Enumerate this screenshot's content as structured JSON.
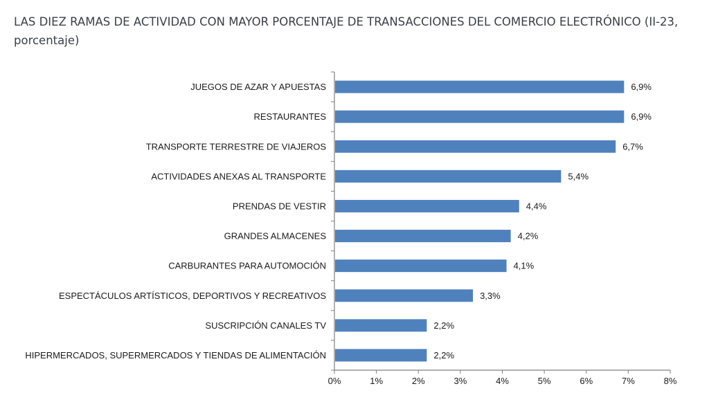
{
  "chart_data": {
    "type": "bar",
    "orientation": "horizontal",
    "title": "LAS DIEZ RAMAS DE ACTIVIDAD CON MAYOR PORCENTAJE DE TRANSACCIONES DEL COMERCIO ELECTRÓNICO (II-23, porcentaje)",
    "categories": [
      "JUEGOS DE AZAR Y APUESTAS",
      "RESTAURANTES",
      "TRANSPORTE TERRESTRE DE VIAJEROS",
      "ACTIVIDADES ANEXAS AL TRANSPORTE",
      "PRENDAS DE VESTIR",
      "GRANDES ALMACENES",
      "CARBURANTES PARA AUTOMOCIÓN",
      "ESPECTÁCULOS ARTÍSTICOS, DEPORTIVOS Y RECREATIVOS",
      "SUSCRIPCIÓN CANALES TV",
      "HIPERMERCADOS, SUPERMERCADOS Y TIENDAS DE ALIMENTACIÓN"
    ],
    "values": [
      6.9,
      6.9,
      6.7,
      5.4,
      4.4,
      4.2,
      4.1,
      3.3,
      2.2,
      2.2
    ],
    "value_labels": [
      "6,9%",
      "6,9%",
      "6,7%",
      "5,4%",
      "4,4%",
      "4,2%",
      "4,1%",
      "3,3%",
      "2,2%",
      "2,2%"
    ],
    "xlim": [
      0,
      8
    ],
    "xticks": [
      "0%",
      "1%",
      "2%",
      "3%",
      "4%",
      "5%",
      "6%",
      "7%",
      "8%"
    ],
    "grid": false,
    "bar_color": "#4f81bd",
    "axis_color": "#808080"
  }
}
